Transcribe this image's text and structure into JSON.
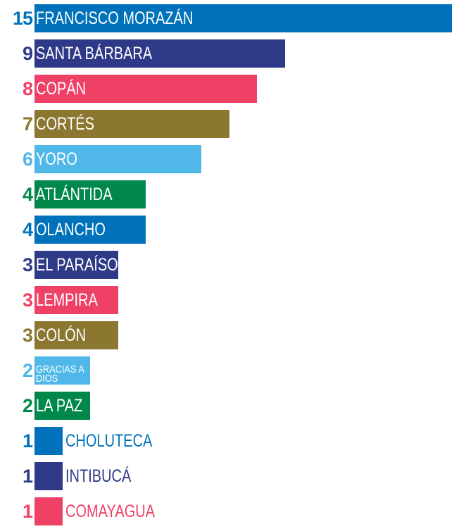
{
  "chart_data": {
    "type": "bar",
    "orientation": "horizontal",
    "categories": [
      "FRANCISCO MORAZÁN",
      "SANTA BÁRBARA",
      "COPÁN",
      "CORTÉS",
      "YORO",
      "ATLÁNTIDA",
      "OLANCHO",
      "EL PARAÍSO",
      "LEMPIRA",
      "COLÓN",
      "GRACIAS A DIOS",
      "LA PAZ",
      "CHOLUTECA",
      "INTIBUCÁ",
      "COMAYAGUA"
    ],
    "values": [
      15,
      9,
      8,
      7,
      6,
      4,
      4,
      3,
      3,
      3,
      2,
      2,
      1,
      1,
      1
    ],
    "colors": [
      "#0072bc",
      "#2e3a87",
      "#ef4066",
      "#8b7730",
      "#4fb8e8",
      "#00874a",
      "#0072bc",
      "#2e3a87",
      "#ef4066",
      "#8b7730",
      "#4fb8e8",
      "#00874a",
      "#0072bc",
      "#2e3a87",
      "#ef4066"
    ]
  }
}
